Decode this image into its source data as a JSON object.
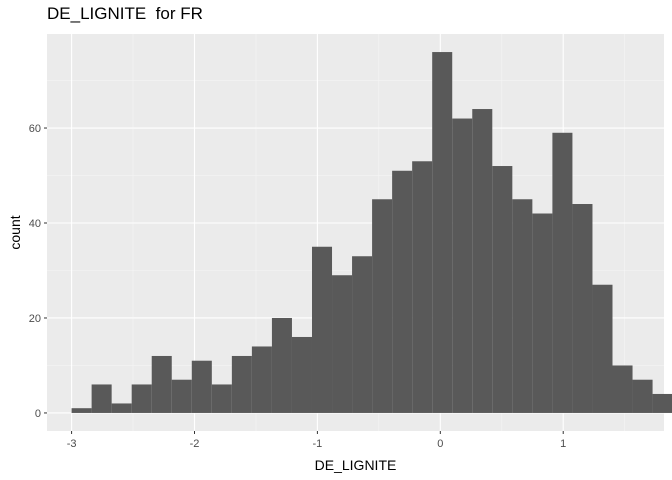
{
  "chart_data": {
    "type": "bar",
    "subtype": "histogram",
    "title": "DE_LIGNITE  for FR",
    "xlabel": "DE_LIGNITE",
    "ylabel": "count",
    "bin_width": 0.163,
    "bin_start": -3.0,
    "values": [
      1,
      6,
      2,
      6,
      12,
      7,
      11,
      6,
      12,
      14,
      20,
      16,
      35,
      29,
      33,
      45,
      51,
      53,
      76,
      62,
      64,
      52,
      45,
      42,
      59,
      44,
      27,
      10,
      7,
      4
    ],
    "xlim": [
      -3.2,
      1.82
    ],
    "ylim": [
      -3.8,
      79.8
    ],
    "x_ticks": [
      -3,
      -2,
      -1,
      0,
      1
    ],
    "y_ticks": [
      0,
      20,
      40,
      60
    ],
    "grid": true,
    "colors": {
      "bar": "#595959",
      "panel": "#ebebeb",
      "grid_major": "#ffffff",
      "grid_minor": "#f5f5f5"
    }
  }
}
